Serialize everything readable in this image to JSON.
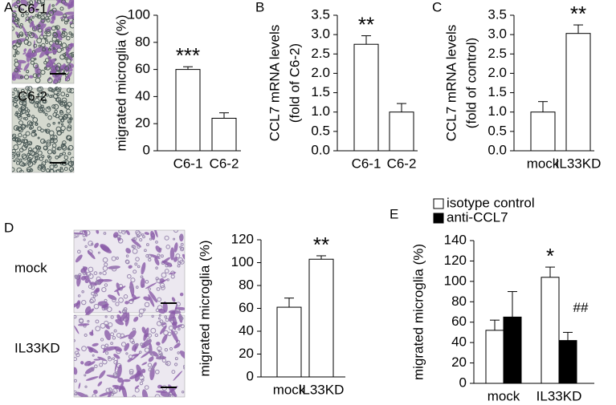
{
  "chart_data": [
    {
      "type": "bar",
      "panel": "A",
      "image_labels": [
        "C6-1",
        "C6-2"
      ],
      "ylabel": "migrated microglia (%)",
      "categories": [
        "C6-1",
        "C6-2"
      ],
      "values": [
        60,
        24
      ],
      "errors": [
        2,
        4
      ],
      "color": "#ffffff",
      "ylim": [
        0,
        100
      ],
      "yticks": [
        0,
        20,
        40,
        60,
        80,
        100
      ],
      "annotations": [
        {
          "text": "***",
          "category": "C6-1"
        }
      ]
    },
    {
      "type": "bar",
      "panel": "B",
      "ylabel": [
        "CCL7 mRNA levels",
        "(fold of C6-2)"
      ],
      "categories": [
        "C6-1",
        "C6-2"
      ],
      "values": [
        2.75,
        1.0
      ],
      "errors": [
        0.22,
        0.22
      ],
      "color": "#ffffff",
      "ylim": [
        0,
        3.5
      ],
      "yticks": [
        {
          "value": 0,
          "label": "0.0"
        },
        0.5,
        {
          "value": 1,
          "label": "1.0"
        },
        1.5,
        {
          "value": 2,
          "label": "2.0"
        },
        2.5,
        {
          "value": 3,
          "label": "3.0"
        },
        3.5
      ],
      "annotations": [
        {
          "text": "**",
          "category": "C6-1"
        }
      ]
    },
    {
      "type": "bar",
      "panel": "C",
      "ylabel": [
        "CCL7 mRNA levels",
        "(fold of control)"
      ],
      "categories": [
        "mock",
        "IL33KD"
      ],
      "values": [
        1.0,
        3.03
      ],
      "errors": [
        0.27,
        0.22
      ],
      "color": "#ffffff",
      "ylim": [
        0,
        3.5
      ],
      "yticks": [
        {
          "value": 0,
          "label": "0.0"
        },
        0.5,
        {
          "value": 1,
          "label": "1.0"
        },
        1.5,
        {
          "value": 2,
          "label": "2.0"
        },
        2.5,
        {
          "value": 3,
          "label": "3.0"
        },
        3.5
      ],
      "annotations": [
        {
          "text": "**",
          "category": "IL33KD"
        }
      ]
    },
    {
      "type": "bar",
      "panel": "D",
      "image_labels": [
        "mock",
        "IL33KD"
      ],
      "ylabel": "migrated microglia (%)",
      "categories": [
        "mock",
        "IL33KD"
      ],
      "values": [
        61,
        103
      ],
      "errors": [
        8,
        3
      ],
      "color": "#ffffff",
      "ylim": [
        0,
        120
      ],
      "yticks": [
        0,
        20,
        40,
        60,
        80,
        100,
        120
      ],
      "annotations": [
        {
          "text": "**",
          "category": "IL33KD"
        }
      ]
    },
    {
      "type": "bar",
      "panel": "E",
      "ylabel": "migrated microglia (%)",
      "categories": [
        "mock",
        "IL33KD"
      ],
      "series": [
        {
          "name": "isotype control",
          "color": "#ffffff",
          "values": [
            52,
            104
          ],
          "errors": [
            10,
            10
          ]
        },
        {
          "name": "anti-CCL7",
          "color": "#000000",
          "values": [
            65,
            42
          ],
          "errors": [
            25,
            8
          ]
        }
      ],
      "ylim": [
        0,
        140
      ],
      "yticks": [
        0,
        20,
        40,
        60,
        80,
        100,
        120,
        140
      ],
      "legend": "top-left",
      "annotations": [
        {
          "text": "*",
          "category": "IL33KD",
          "series": "isotype control"
        },
        {
          "text": "##",
          "category": "IL33KD",
          "series": "anti-CCL7"
        }
      ]
    }
  ]
}
